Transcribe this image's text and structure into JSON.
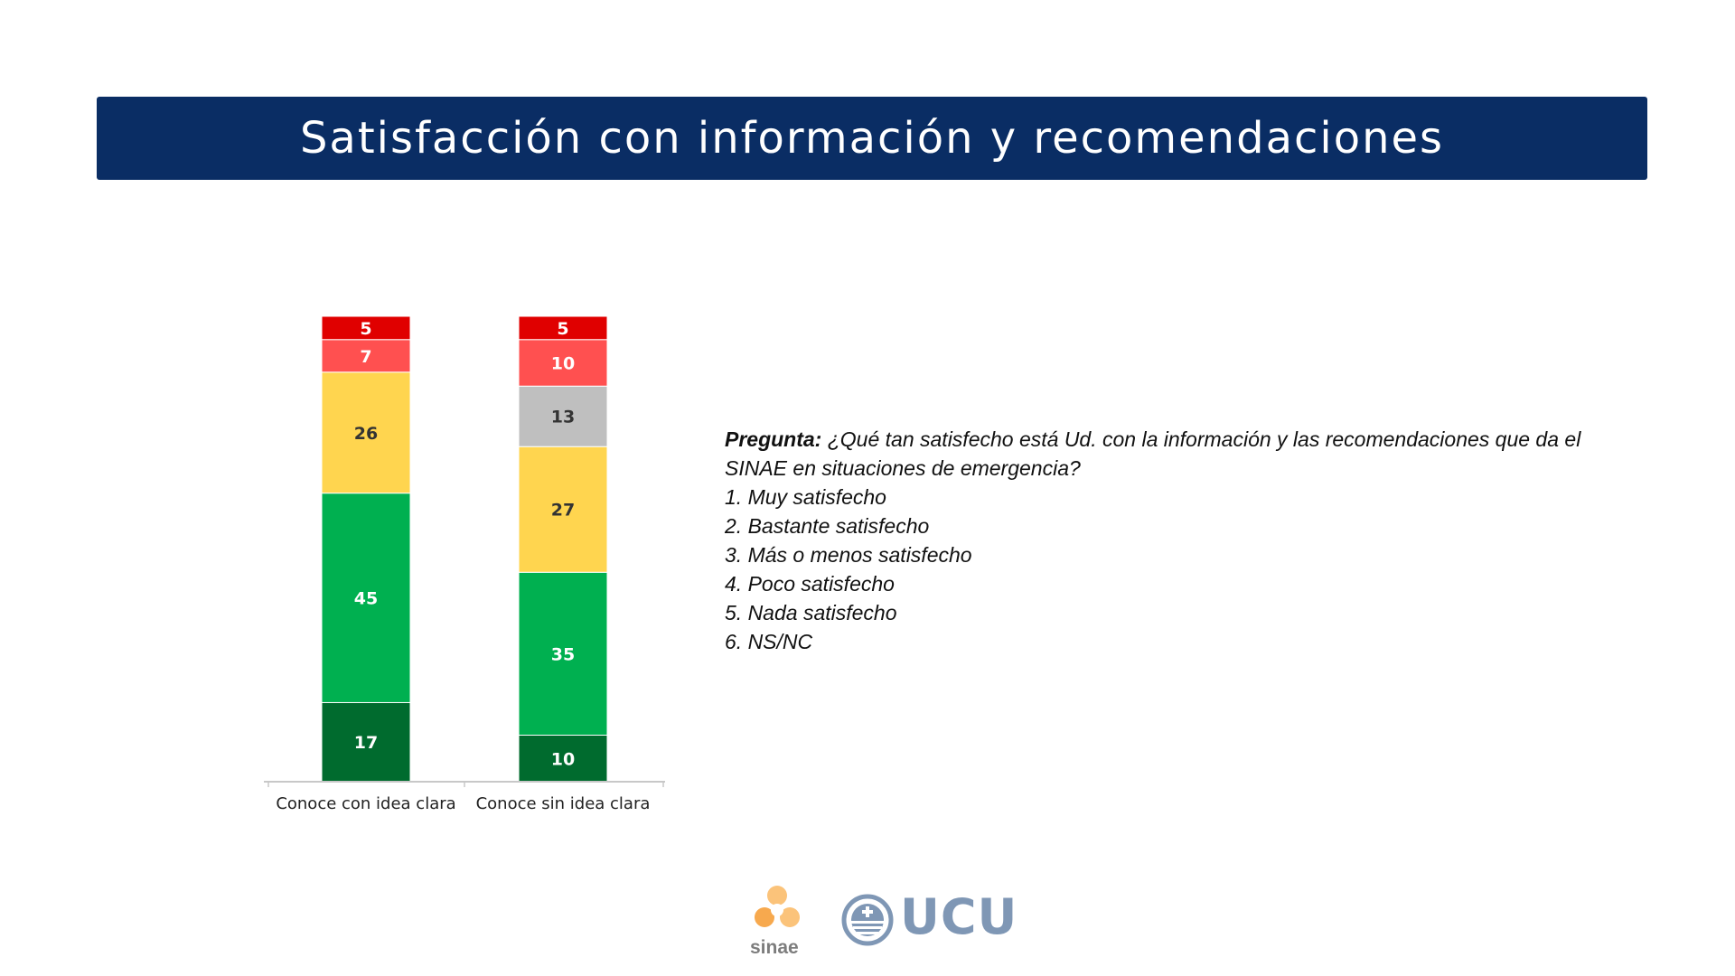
{
  "header": {
    "title": "Satisfacción con información y recomendaciones"
  },
  "colors": {
    "banner": "#0a2d64",
    "muy_satisfecho": "#006b2e",
    "bastante_satisfecho": "#00b050",
    "mas_o_menos": "#ffd54f",
    "poco": "#bfbfbf",
    "nada": "#ff5050",
    "nsnc": "#e00000"
  },
  "chart_data": {
    "type": "bar",
    "stacked": true,
    "normalized_to": 100,
    "categories": [
      "Conoce con idea clara",
      "Conoce sin idea clara"
    ],
    "series": [
      {
        "key": "muy",
        "values": [
          17,
          10
        ],
        "color": "#006b2e",
        "label_color": "#ffffff"
      },
      {
        "key": "bastante",
        "values": [
          45,
          35
        ],
        "color": "#00b050",
        "label_color": "#ffffff"
      },
      {
        "key": "mas_menos",
        "values": [
          26,
          27
        ],
        "color": "#ffd54f",
        "label_color": "#333333"
      },
      {
        "key": "poco",
        "values": [
          0,
          13
        ],
        "color": "#bfbfbf",
        "label_color": "#333333"
      },
      {
        "key": "nada",
        "values": [
          7,
          10
        ],
        "color": "#ff5050",
        "label_color": "#ffffff"
      },
      {
        "key": "nsnc",
        "values": [
          5,
          5
        ],
        "color": "#e00000",
        "label_color": "#ffffff"
      }
    ]
  },
  "question": {
    "label": "Pregunta:",
    "text": "¿Qué tan satisfecho está Ud. con la información y las recomendaciones que da el SINAE en situaciones de emergencia?",
    "options": [
      "1. Muy satisfecho",
      "2. Bastante satisfecho",
      "3. Más o menos satisfecho",
      "4. Poco satisfecho",
      "5. Nada satisfecho",
      "6. NS/NC"
    ]
  },
  "logos": {
    "sinae": "sinae",
    "ucu": "UCU"
  }
}
